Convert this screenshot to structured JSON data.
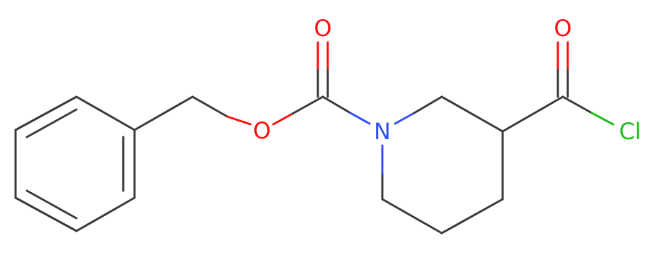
{
  "atoms": [
    {
      "label": "O"
    },
    {
      "label": "O"
    },
    {
      "label": "N"
    },
    {
      "label": "O"
    },
    {
      "label": "Cl"
    }
  ]
}
